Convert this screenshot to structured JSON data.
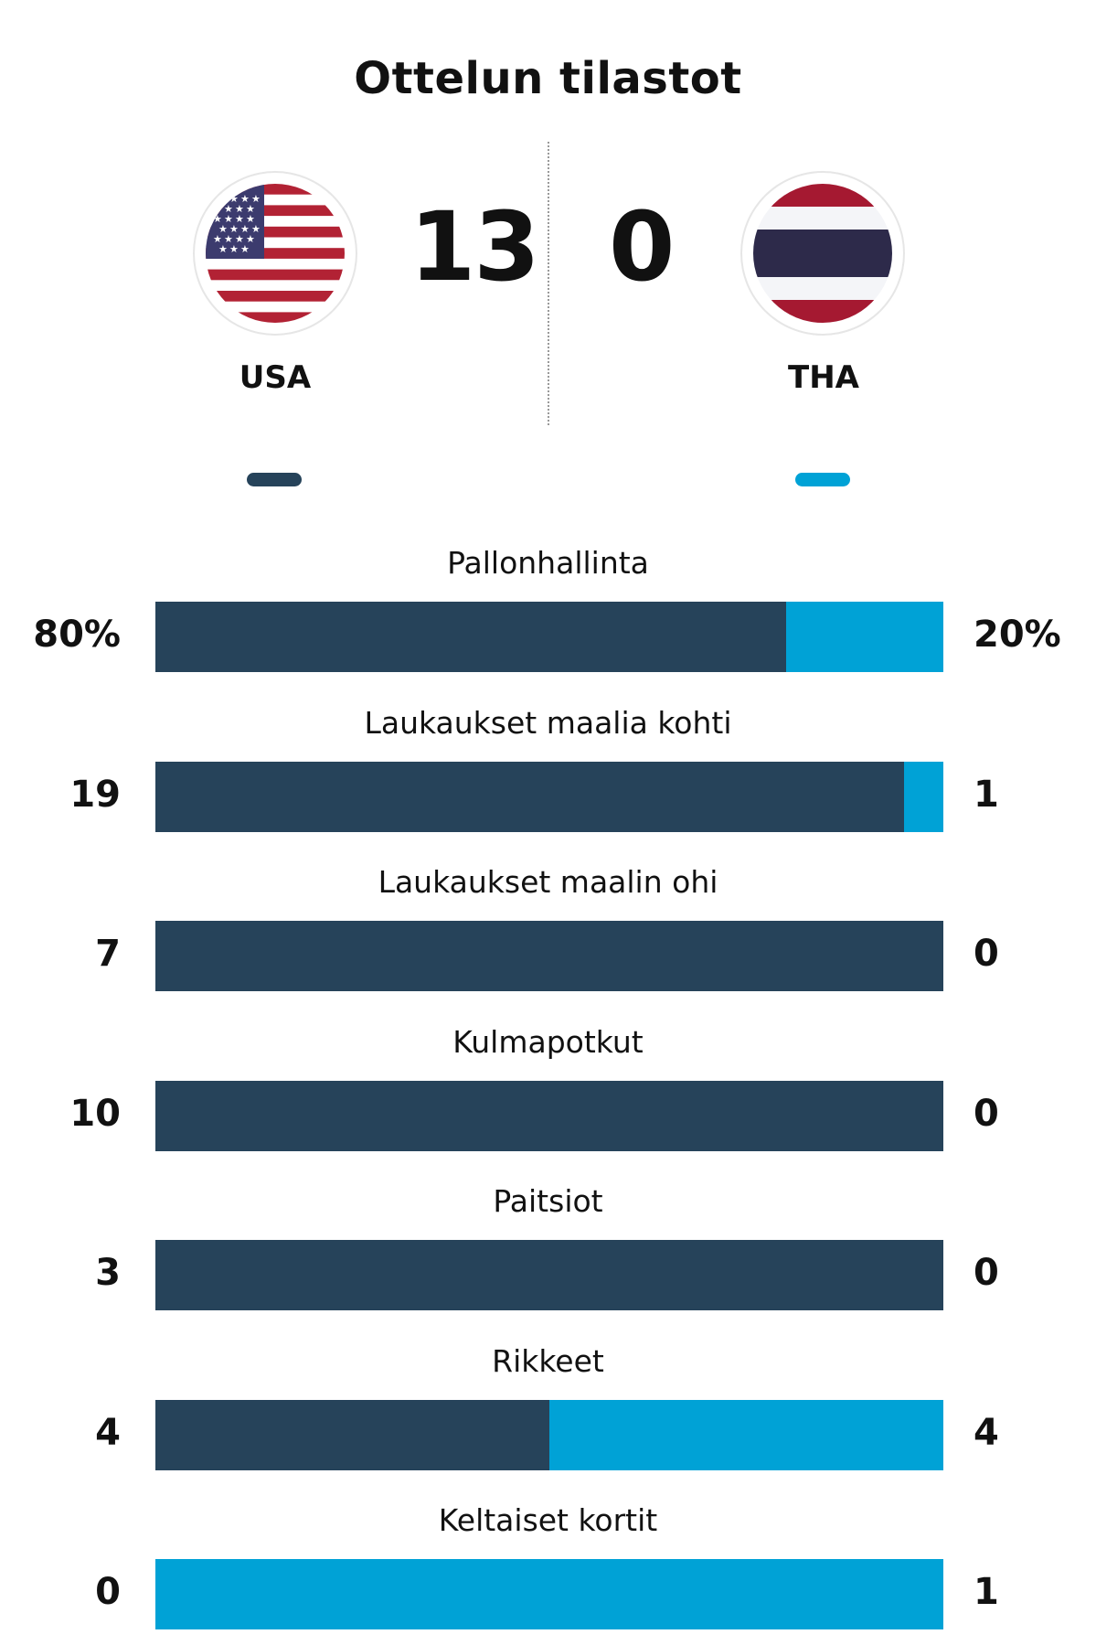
{
  "header": {
    "title": "Ottelun tilastot"
  },
  "match": {
    "home": {
      "name": "USA",
      "score": "13",
      "flag": "usa-flag-icon",
      "color": "#26435a"
    },
    "away": {
      "name": "THA",
      "score": "0",
      "flag": "thailand-flag-icon",
      "color": "#00a2d6"
    }
  },
  "chart_data": {
    "type": "bar",
    "orientation": "horizontal-stacked-100",
    "categories": [
      "Pallonhallinta",
      "Laukaukset maalia kohti",
      "Laukaukset maalin ohi",
      "Kulmapotkut",
      "Paitsiot",
      "Rikkeet",
      "Keltaiset kortit"
    ],
    "series": [
      {
        "name": "USA",
        "values": [
          80,
          19,
          7,
          10,
          3,
          4,
          0
        ],
        "labels": [
          "80%",
          "19",
          "7",
          "10",
          "3",
          "4",
          "0"
        ],
        "color": "#26435a"
      },
      {
        "name": "THA",
        "values": [
          20,
          1,
          0,
          0,
          0,
          4,
          1
        ],
        "labels": [
          "20%",
          "1",
          "0",
          "0",
          "0",
          "4",
          "1"
        ],
        "color": "#00a2d6"
      }
    ],
    "legend": "top"
  }
}
